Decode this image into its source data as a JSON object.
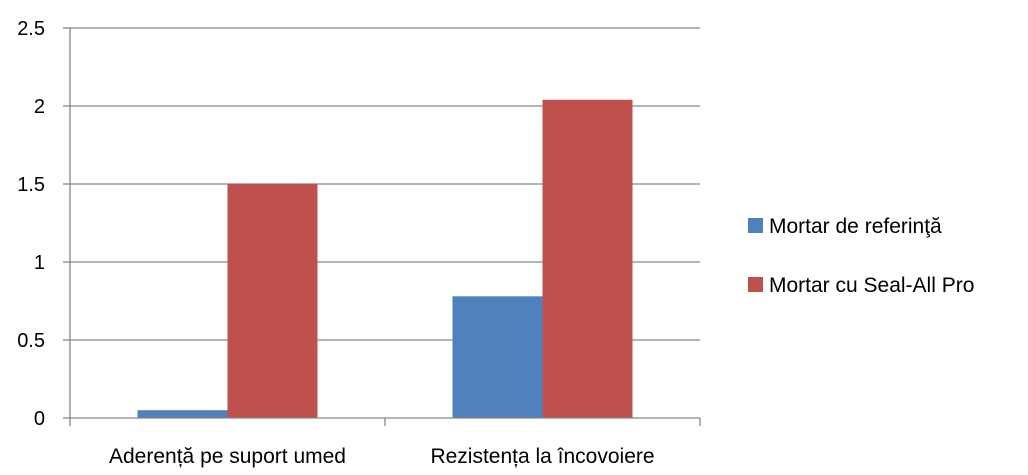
{
  "chart_data": {
    "type": "bar",
    "categories": [
      "Aderență pe suport umed",
      "Rezistența la încovoiere"
    ],
    "series": [
      {
        "name": "Mortar de referinţă",
        "values": [
          0.05,
          0.78
        ],
        "color": "#4F81BD"
      },
      {
        "name": "Mortar cu Seal-All Pro",
        "values": [
          1.5,
          2.04
        ],
        "color": "#C0504D"
      }
    ],
    "ylim": [
      0,
      2.5
    ],
    "yticks": [
      "0",
      "0.5",
      "1",
      "1.5",
      "2",
      "2.5"
    ],
    "grid": true,
    "legend_position": "right"
  }
}
